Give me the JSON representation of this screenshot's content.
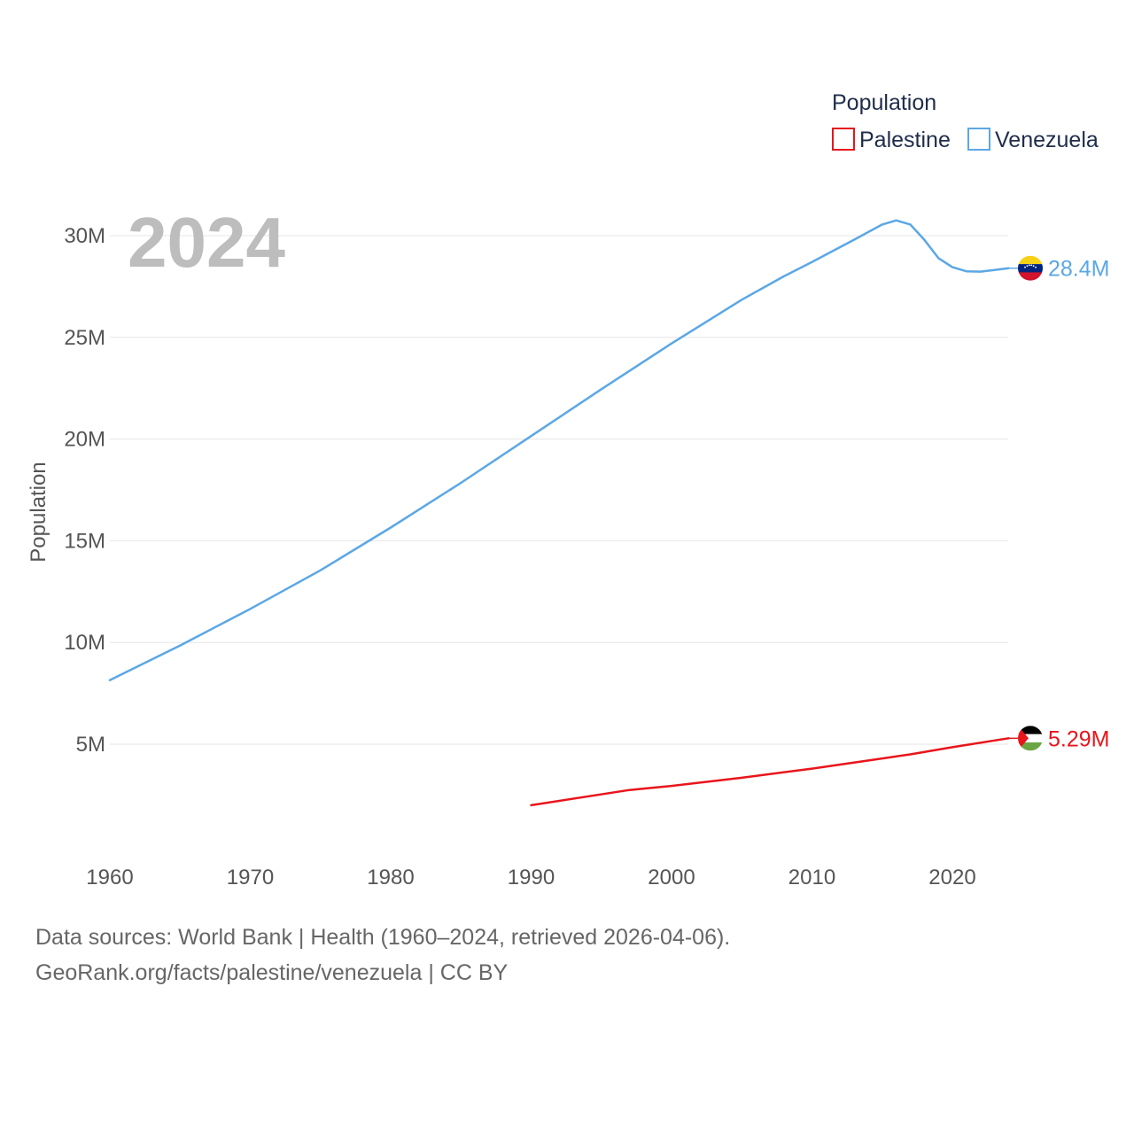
{
  "chart_data": {
    "type": "line",
    "current_year_label": "2024",
    "ylabel": "Population",
    "xlim": [
      1960,
      2024
    ],
    "ylim": [
      0,
      31000000
    ],
    "x_ticks": [
      {
        "value": 1960,
        "label": "1960"
      },
      {
        "value": 1970,
        "label": "1970"
      },
      {
        "value": 1980,
        "label": "1980"
      },
      {
        "value": 1990,
        "label": "1990"
      },
      {
        "value": 2000,
        "label": "2000"
      },
      {
        "value": 2010,
        "label": "2010"
      },
      {
        "value": 2020,
        "label": "2020"
      }
    ],
    "y_ticks": [
      {
        "value": 5000000,
        "label": "5M"
      },
      {
        "value": 10000000,
        "label": "10M"
      },
      {
        "value": 15000000,
        "label": "15M"
      },
      {
        "value": 20000000,
        "label": "20M"
      },
      {
        "value": 25000000,
        "label": "25M"
      },
      {
        "value": 30000000,
        "label": "30M"
      }
    ],
    "legend": {
      "title": "Population",
      "position": "top-right"
    },
    "series": [
      {
        "name": "Palestine",
        "color": "#e8151b",
        "flag_icon": "palestine-flag-icon",
        "end_label": "5.29M",
        "x": [
          1990,
          1997,
          2000,
          2005,
          2010,
          2015,
          2017,
          2020,
          2024
        ],
        "values": [
          2000000,
          2750000,
          2950000,
          3350000,
          3800000,
          4300000,
          4500000,
          4850000,
          5290000
        ]
      },
      {
        "name": "Venezuela",
        "color": "#5ba7e5",
        "flag_icon": "venezuela-flag-icon",
        "end_label": "28.4M",
        "x": [
          1960,
          1965,
          1970,
          1975,
          1980,
          1985,
          1990,
          1995,
          2000,
          2005,
          2008,
          2010,
          2013,
          2015,
          2016,
          2017,
          2018,
          2019,
          2020,
          2021,
          2022,
          2023,
          2024
        ],
        "values": [
          8150000,
          9850000,
          11650000,
          13550000,
          15650000,
          17850000,
          20150000,
          22450000,
          24700000,
          26850000,
          28000000,
          28700000,
          29800000,
          30550000,
          30750000,
          30550000,
          29800000,
          28900000,
          28450000,
          28250000,
          28230000,
          28310000,
          28400000
        ]
      }
    ]
  },
  "footer": {
    "line1": "Data sources: World Bank | Health (1960–2024, retrieved 2026-04-06).",
    "line2": "GeoRank.org/facts/palestine/venezuela | CC BY"
  }
}
